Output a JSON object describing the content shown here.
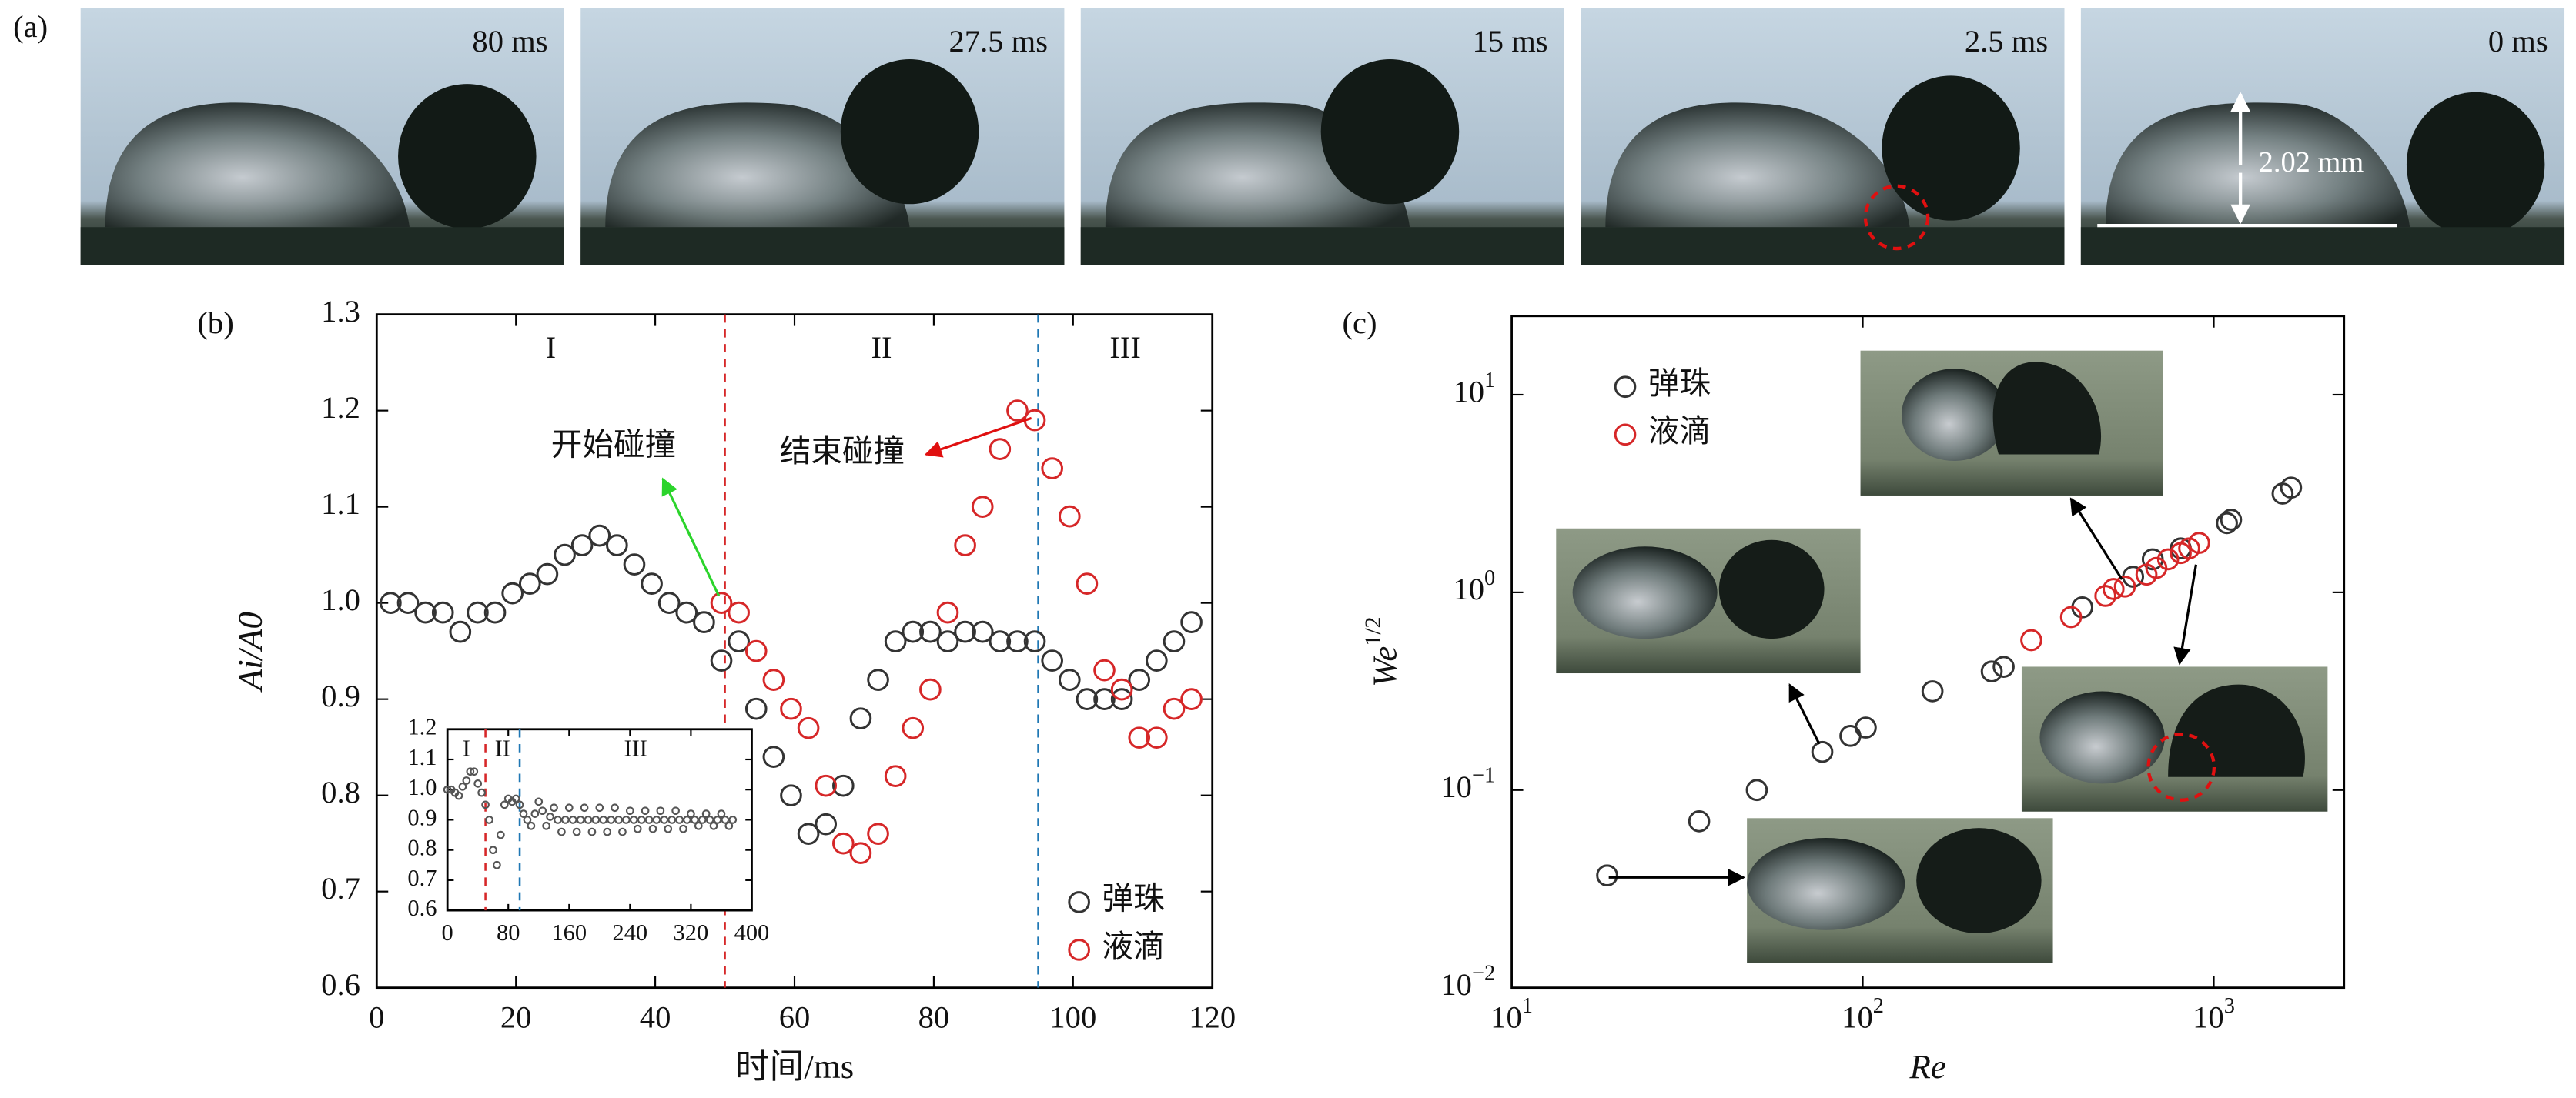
{
  "panel_labels": [
    "(a)",
    "(b)",
    "(c)"
  ],
  "panel_a": {
    "frames": [
      "80 ms",
      "27.5 ms",
      "15 ms",
      "2.5 ms",
      "0 ms"
    ],
    "scale_label": "2.02 mm"
  },
  "chart_data": [
    {
      "type": "scatter",
      "xlabel": "时间/ms",
      "ylabel": "Ai/A0",
      "xlim": [
        0,
        120
      ],
      "ylim": [
        0.6,
        1.3
      ],
      "xticks": [
        0,
        20,
        40,
        60,
        80,
        100,
        120
      ],
      "yticks": [
        0.6,
        0.7,
        0.8,
        0.9,
        {
          "value": 1,
          "label": "1.0"
        },
        1.1,
        1.2,
        1.3
      ],
      "vlines": [
        {
          "x": 50,
          "color": "#d62728"
        },
        {
          "x": 95,
          "color": "#1f77b4"
        }
      ],
      "regions": [
        "I",
        "II",
        "III"
      ],
      "annotations": [
        "开始碰撞",
        "结束碰撞"
      ],
      "legend": "lower right",
      "series": [
        {
          "name": "弹珠",
          "color": "#333333",
          "x": [
            2,
            4.5,
            7,
            9.5,
            12,
            14.5,
            17,
            19.5,
            22,
            24.5,
            27,
            29.5,
            32,
            34.5,
            37,
            39.5,
            42,
            44.5,
            47,
            49.5,
            52,
            54.5,
            57,
            59.5,
            62,
            64.5,
            67,
            69.5,
            72,
            74.5,
            77,
            79.5,
            82,
            84.5,
            87,
            89.5,
            92,
            94.5,
            97,
            99.5,
            102,
            104.5,
            107,
            109.5,
            112,
            114.5,
            117
          ],
          "values": [
            1.0,
            1.0,
            0.99,
            0.99,
            0.97,
            0.99,
            0.99,
            1.01,
            1.02,
            1.03,
            1.05,
            1.06,
            1.07,
            1.06,
            1.04,
            1.02,
            1.0,
            0.99,
            0.98,
            0.94,
            0.96,
            0.89,
            0.84,
            0.8,
            0.76,
            0.77,
            0.81,
            0.88,
            0.92,
            0.96,
            0.97,
            0.97,
            0.96,
            0.97,
            0.97,
            0.96,
            0.96,
            0.96,
            0.94,
            0.92,
            0.9,
            0.9,
            0.9,
            0.92,
            0.94,
            0.96,
            0.98
          ]
        },
        {
          "name": "液滴",
          "color": "#d62728",
          "x": [
            49.5,
            52,
            54.5,
            57,
            59.5,
            62,
            64.5,
            67,
            69.5,
            72,
            74.5,
            77,
            79.5,
            82,
            84.5,
            87,
            89.5,
            92,
            94.5,
            97,
            99.5,
            102,
            104.5,
            107,
            109.5,
            112,
            114.5,
            117
          ],
          "values": [
            1.0,
            0.99,
            0.95,
            0.92,
            0.89,
            0.87,
            0.81,
            0.75,
            0.74,
            0.76,
            0.82,
            0.87,
            0.91,
            0.99,
            1.06,
            1.1,
            1.16,
            1.2,
            1.19,
            1.14,
            1.09,
            1.02,
            0.93,
            0.91,
            0.86,
            0.86,
            0.89,
            0.9
          ]
        }
      ]
    },
    {
      "type": "scatter",
      "inset": true,
      "xlim": [
        0,
        400
      ],
      "ylim": [
        0.6,
        1.2
      ],
      "xticks": [
        0,
        80,
        160,
        240,
        320,
        400
      ],
      "yticks": [
        0.6,
        0.7,
        0.8,
        0.9,
        {
          "value": 1,
          "label": "1.0"
        },
        1.1,
        1.2
      ],
      "vlines": [
        {
          "x": 50,
          "color": "#d62728"
        },
        {
          "x": 95,
          "color": "#1f77b4"
        }
      ],
      "regions": [
        "I",
        "II",
        "III"
      ],
      "series": [
        {
          "color": "#555555",
          "x": [
            0,
            5,
            10,
            15,
            20,
            25,
            30,
            35,
            40,
            45,
            50,
            55,
            60,
            65,
            70,
            75,
            80,
            85,
            90,
            95,
            100,
            105,
            110,
            115,
            120,
            125,
            130,
            135,
            140,
            145,
            150,
            155,
            160,
            165,
            170,
            175,
            180,
            185,
            190,
            195,
            200,
            205,
            210,
            215,
            220,
            225,
            230,
            235,
            240,
            245,
            250,
            255,
            260,
            265,
            270,
            275,
            280,
            285,
            290,
            295,
            300,
            305,
            310,
            315,
            320,
            325,
            330,
            335,
            340,
            345,
            350,
            355,
            360,
            365,
            370,
            375
          ],
          "values": [
            1.0,
            1.0,
            0.99,
            0.98,
            1.01,
            1.03,
            1.06,
            1.06,
            1.02,
            0.99,
            0.95,
            0.9,
            0.8,
            0.75,
            0.85,
            0.95,
            0.97,
            0.96,
            0.97,
            0.95,
            0.92,
            0.9,
            0.88,
            0.92,
            0.96,
            0.93,
            0.88,
            0.91,
            0.94,
            0.9,
            0.86,
            0.9,
            0.94,
            0.9,
            0.86,
            0.9,
            0.94,
            0.9,
            0.86,
            0.9,
            0.94,
            0.9,
            0.86,
            0.9,
            0.94,
            0.9,
            0.86,
            0.9,
            0.93,
            0.9,
            0.87,
            0.9,
            0.93,
            0.9,
            0.87,
            0.9,
            0.93,
            0.9,
            0.87,
            0.9,
            0.93,
            0.9,
            0.87,
            0.9,
            0.92,
            0.9,
            0.88,
            0.9,
            0.92,
            0.9,
            0.88,
            0.9,
            0.92,
            0.9,
            0.88,
            0.9
          ]
        }
      ]
    },
    {
      "type": "scatter",
      "xlabel": "Re",
      "ylabel": "We",
      "ylabel_sup": "1/2",
      "log_scale": true,
      "xlim": [
        10,
        2350
      ],
      "ylim": [
        0.01,
        25
      ],
      "xticks": [
        {
          "value": 10,
          "label": "10",
          "exp": "1"
        },
        {
          "value": 100,
          "label": "10",
          "exp": "2"
        },
        {
          "value": 1000,
          "label": "10",
          "exp": "3"
        }
      ],
      "yticks": [
        {
          "value": 0.01,
          "label": "10",
          "exp": "−2"
        },
        {
          "value": 0.1,
          "label": "10",
          "exp": "−1"
        },
        {
          "value": 1,
          "label": "10",
          "exp": "0"
        },
        {
          "value": 10,
          "label": "10",
          "exp": "1"
        }
      ],
      "legend": "upper left",
      "series": [
        {
          "name": "弹珠",
          "color": "#333333",
          "x": [
            18.7,
            34.2,
            49.9,
            76.7,
            92.2,
            102,
            158,
            233,
            252,
            422,
            589,
            670,
            805,
            1090,
            1120,
            1570,
            1660
          ],
          "values": [
            0.037,
            0.0695,
            0.1,
            0.156,
            0.188,
            0.207,
            0.316,
            0.398,
            0.42,
            0.84,
            1.2,
            1.47,
            1.67,
            2.24,
            2.33,
            3.16,
            3.39
          ]
        },
        {
          "name": "液滴",
          "color": "#d62728",
          "x": [
            302,
            392,
            491,
            518,
            558,
            643,
            686,
            741,
            805,
            851,
            908
          ],
          "values": [
            0.573,
            0.75,
            0.96,
            1.04,
            1.07,
            1.23,
            1.33,
            1.47,
            1.58,
            1.67,
            1.78
          ]
        }
      ]
    }
  ]
}
